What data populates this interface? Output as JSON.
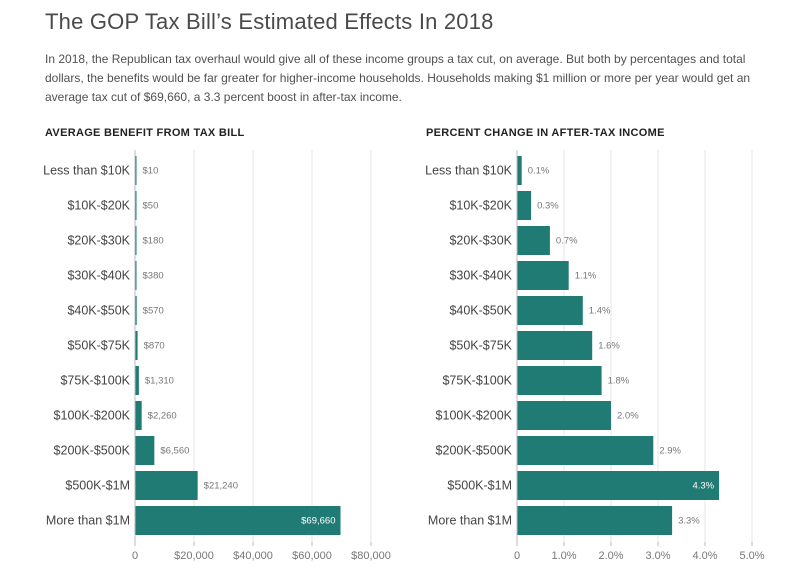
{
  "title": "The GOP Tax Bill’s Estimated Effects In 2018",
  "description": "In 2018, the Republican tax overhaul would give all of these income groups a tax cut, on average. But both by percentages and total dollars, the benefits would be far greater for higher-income households. Households making $1 million or more per year would get an average tax cut of $69,660, a 3.3 percent boost in after-tax income.",
  "colors": {
    "bar": "#1f7b73",
    "grid": "#e6e6e6",
    "axis": "#bbbbbb"
  },
  "chart_data": [
    {
      "type": "bar",
      "orientation": "horizontal",
      "title": "AVERAGE BENEFIT FROM TAX BILL",
      "categories": [
        "Less than $10K",
        "$10K-$20K",
        "$20K-$30K",
        "$30K-$40K",
        "$40K-$50K",
        "$50K-$75K",
        "$75K-$100K",
        "$100K-$200K",
        "$200K-$500K",
        "$500K-$1M",
        "More than $1M"
      ],
      "values": [
        10,
        50,
        180,
        380,
        570,
        870,
        1310,
        2260,
        6560,
        21240,
        69660
      ],
      "value_labels": [
        "$10",
        "$50",
        "$180",
        "$380",
        "$570",
        "$870",
        "$1,310",
        "$2,260",
        "$6,560",
        "$21,240",
        "$69,660"
      ],
      "xlim": [
        0,
        80000
      ],
      "ticks": [
        0,
        20000,
        40000,
        60000,
        80000
      ],
      "tick_labels": [
        "0",
        "$20,000",
        "$40,000",
        "$60,000",
        "$80,000"
      ],
      "xlabel": "",
      "ylabel": ""
    },
    {
      "type": "bar",
      "orientation": "horizontal",
      "title": "PERCENT CHANGE IN AFTER-TAX INCOME",
      "categories": [
        "Less than $10K",
        "$10K-$20K",
        "$20K-$30K",
        "$30K-$40K",
        "$40K-$50K",
        "$50K-$75K",
        "$75K-$100K",
        "$100K-$200K",
        "$200K-$500K",
        "$500K-$1M",
        "More than $1M"
      ],
      "values": [
        0.1,
        0.3,
        0.7,
        1.1,
        1.4,
        1.6,
        1.8,
        2.0,
        2.9,
        4.3,
        3.3
      ],
      "value_labels": [
        "0.1%",
        "0.3%",
        "0.7%",
        "1.1%",
        "1.4%",
        "1.6%",
        "1.8%",
        "2.0%",
        "2.9%",
        "4.3%",
        "3.3%"
      ],
      "xlim": [
        0,
        5.0
      ],
      "ticks": [
        0,
        1,
        2,
        3,
        4,
        5
      ],
      "tick_labels": [
        "0",
        "1.0%",
        "2.0%",
        "3.0%",
        "4.0%",
        "5.0%"
      ],
      "xlabel": "",
      "ylabel": ""
    }
  ]
}
